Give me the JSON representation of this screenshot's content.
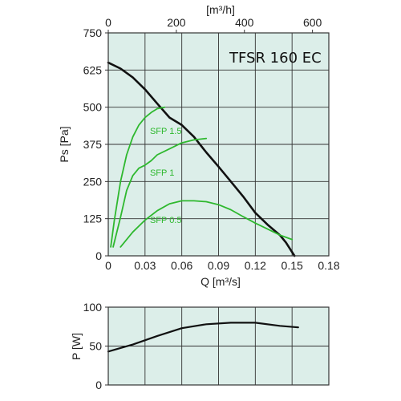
{
  "chart_data": [
    {
      "type": "line",
      "title": "TFSR 160 EC",
      "xlabel": "Q [m³/s]",
      "ylabel": "Ps [Pa]",
      "top_axis_label": "[m³/h]",
      "xlim": [
        0,
        0.18
      ],
      "ylim": [
        0,
        750
      ],
      "x_ticks": [
        "0",
        "0.03",
        "0.06",
        "0.09",
        "0.12",
        "0.15",
        "0.18"
      ],
      "y_ticks": [
        "0",
        "125",
        "250",
        "375",
        "500",
        "625",
        "750"
      ],
      "top_ticks": [
        "0",
        "200",
        "400",
        "600"
      ],
      "grid": true,
      "colors": {
        "background": "#dceee9",
        "fan_curve": "#111111",
        "sfp_curves": "#2eb82e"
      },
      "series": [
        {
          "points": [
            [
              0,
              650
            ],
            [
              0.01,
              630
            ],
            [
              0.02,
              600
            ],
            [
              0.03,
              560
            ],
            [
              0.04,
              512
            ],
            [
              0.05,
              465
            ],
            [
              0.06,
              440
            ],
            [
              0.07,
              400
            ],
            [
              0.08,
              348
            ],
            [
              0.09,
              300
            ],
            [
              0.1,
              250
            ],
            [
              0.11,
              200
            ],
            [
              0.12,
              145
            ],
            [
              0.13,
              105
            ],
            [
              0.14,
              70
            ],
            [
              0.145,
              45
            ],
            [
              0.152,
              0
            ]
          ]
        },
        {
          "name": "SFP 1.5",
          "points": [
            [
              0.002,
              30
            ],
            [
              0.005,
              120
            ],
            [
              0.01,
              250
            ],
            [
              0.015,
              340
            ],
            [
              0.02,
              400
            ],
            [
              0.025,
              440
            ],
            [
              0.03,
              465
            ],
            [
              0.035,
              482
            ],
            [
              0.04,
              495
            ],
            [
              0.046,
              500
            ]
          ]
        },
        {
          "name": "SFP 1",
          "points": [
            [
              0.004,
              30
            ],
            [
              0.01,
              130
            ],
            [
              0.015,
              220
            ],
            [
              0.02,
              270
            ],
            [
              0.025,
              295
            ],
            [
              0.03,
              305
            ],
            [
              0.035,
              320
            ],
            [
              0.04,
              340
            ],
            [
              0.05,
              360
            ],
            [
              0.06,
              380
            ],
            [
              0.07,
              390
            ],
            [
              0.08,
              395
            ]
          ]
        },
        {
          "name": "SFP 0.5",
          "points": [
            [
              0.01,
              30
            ],
            [
              0.02,
              80
            ],
            [
              0.03,
              120
            ],
            [
              0.04,
              152
            ],
            [
              0.05,
              175
            ],
            [
              0.06,
              185
            ],
            [
              0.07,
              185
            ],
            [
              0.08,
              182
            ],
            [
              0.09,
              172
            ],
            [
              0.1,
              155
            ],
            [
              0.11,
              132
            ],
            [
              0.12,
              110
            ],
            [
              0.13,
              90
            ],
            [
              0.14,
              70
            ],
            [
              0.15,
              55
            ]
          ]
        }
      ],
      "series_labels": [
        {
          "text": "SFP 1.5",
          "x": 0.034,
          "y": 410
        },
        {
          "text": "SFP 1",
          "x": 0.034,
          "y": 270
        },
        {
          "text": "SFP 0.5",
          "x": 0.034,
          "y": 110
        }
      ]
    },
    {
      "type": "line",
      "ylabel": "P [W]",
      "xlim": [
        0,
        0.18
      ],
      "ylim": [
        0,
        100
      ],
      "y_ticks": [
        "0",
        "50",
        "100"
      ],
      "grid": true,
      "series": [
        {
          "points": [
            [
              0,
              43
            ],
            [
              0.02,
              52
            ],
            [
              0.04,
              63
            ],
            [
              0.06,
              73
            ],
            [
              0.08,
              78
            ],
            [
              0.1,
              80
            ],
            [
              0.12,
              80
            ],
            [
              0.14,
              76
            ],
            [
              0.155,
              74
            ]
          ]
        }
      ]
    }
  ]
}
